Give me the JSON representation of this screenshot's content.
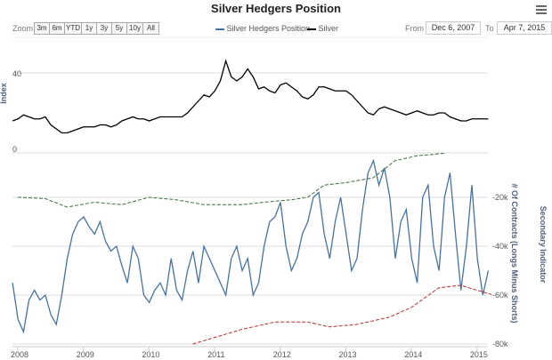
{
  "chart_data": {
    "type": "line",
    "title": "Silver Hedgers Position",
    "zoom_label": "Zoom",
    "zoom_buttons": [
      "3m",
      "6m",
      "YTD",
      "1y",
      "3y",
      "5y",
      "10y",
      "All"
    ],
    "from_label": "From",
    "from_value": "Dec 6, 2007",
    "to_label": "To",
    "to_value": "Apr 7, 2015",
    "legend": [
      {
        "name": "Silver Hedgers Position",
        "color": "#4572a7"
      },
      {
        "name": "Silver",
        "color": "#000000"
      }
    ],
    "x_ticks": [
      "2008",
      "2009",
      "2010",
      "2011",
      "2012",
      "2013",
      "2014",
      "2015"
    ],
    "top_axis": {
      "label": "Index",
      "ticks": [
        0,
        40
      ]
    },
    "bottom_axis": {
      "label": "# Of Contracts (Longs Minus Shorts)",
      "secondary_label": "Secondary Indicator",
      "ticks": [
        "-20k",
        "-40k",
        "-60k",
        "-80k"
      ]
    },
    "start": "2008-01",
    "silver": [
      16,
      17,
      19,
      18,
      17,
      17,
      18,
      14,
      12,
      10,
      10,
      11,
      12,
      13,
      13,
      13,
      14,
      14,
      13,
      14,
      16,
      17,
      18,
      17,
      17,
      16,
      17,
      18,
      18,
      18,
      18,
      18,
      20,
      23,
      26,
      29,
      28,
      31,
      36,
      46,
      38,
      36,
      38,
      42,
      38,
      32,
      33,
      31,
      30,
      34,
      35,
      33,
      31,
      28,
      27,
      29,
      33,
      33,
      32,
      31,
      31,
      31,
      29,
      26,
      23,
      20,
      19,
      22,
      23,
      22,
      21,
      20,
      19,
      20,
      21,
      20,
      19,
      19,
      20,
      20,
      18,
      17,
      16,
      16,
      17,
      17,
      17,
      17
    ],
    "hedgers_k": [
      -55,
      -70,
      -75,
      -62,
      -58,
      -62,
      -60,
      -68,
      -72,
      -60,
      -45,
      -35,
      -30,
      -28,
      -32,
      -35,
      -30,
      -38,
      -42,
      -40,
      -48,
      -55,
      -40,
      -45,
      -60,
      -63,
      -58,
      -55,
      -60,
      -45,
      -58,
      -62,
      -50,
      -42,
      -55,
      -40,
      -45,
      -50,
      -55,
      -60,
      -45,
      -40,
      -50,
      -45,
      -60,
      -55,
      -40,
      -30,
      -28,
      -22,
      -40,
      -50,
      -45,
      -35,
      -30,
      -20,
      -18,
      -35,
      -45,
      -30,
      -20,
      -35,
      -50,
      -45,
      -25,
      -10,
      -5,
      -15,
      -8,
      -20,
      -45,
      -30,
      -25,
      -45,
      -55,
      -20,
      -15,
      -40,
      -50,
      -20,
      -10,
      -35,
      -58,
      -40,
      -15,
      -45,
      -60,
      -50
    ],
    "green_dashed_k": [
      [
        "2008-01",
        -20
      ],
      [
        "2008-06",
        -20.5
      ],
      [
        "2008-10",
        -24
      ],
      [
        "2009-03",
        -22
      ],
      [
        "2009-08",
        -23
      ],
      [
        "2010-01",
        -20
      ],
      [
        "2010-06",
        -21
      ],
      [
        "2010-11",
        -23
      ],
      [
        "2011-06",
        -23
      ],
      [
        "2011-10",
        -22
      ],
      [
        "2012-03",
        -21
      ],
      [
        "2012-06",
        -20
      ],
      [
        "2012-09",
        -15
      ],
      [
        "2013-01",
        -14
      ],
      [
        "2013-06",
        -12
      ],
      [
        "2013-10",
        -5
      ],
      [
        "2014-02",
        -3
      ],
      [
        "2014-07",
        -2
      ]
    ],
    "red_dashed_k": [
      [
        "2010-09",
        -80
      ],
      [
        "2010-12",
        -78
      ],
      [
        "2011-06",
        -74
      ],
      [
        "2011-12",
        -71
      ],
      [
        "2012-06",
        -71
      ],
      [
        "2012-10",
        -73
      ],
      [
        "2013-03",
        -72
      ],
      [
        "2013-09",
        -69
      ],
      [
        "2014-01",
        -65
      ],
      [
        "2014-06",
        -57
      ],
      [
        "2014-10",
        -56
      ],
      [
        "2015-01",
        -58
      ],
      [
        "2015-04",
        -60
      ]
    ]
  }
}
